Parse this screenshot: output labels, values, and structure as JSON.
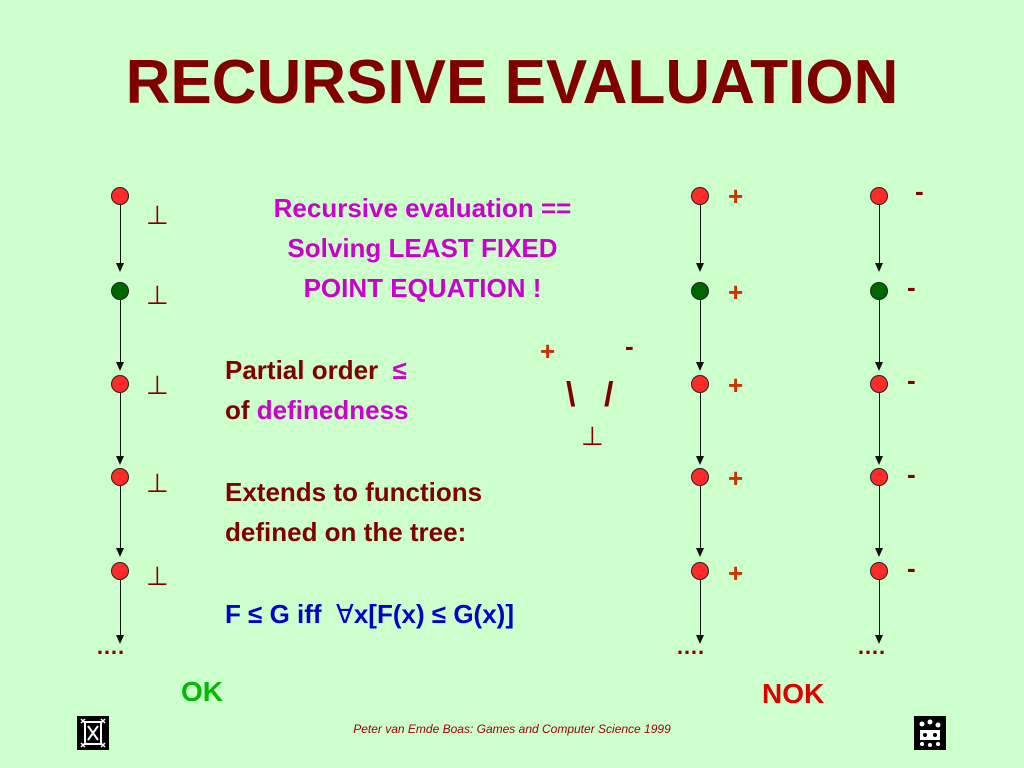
{
  "title": "RECURSIVE EVALUATION",
  "text": {
    "line1": "Recursive evaluation ==",
    "line2": "Solving LEAST FIXED",
    "line3": "POINT EQUATION !",
    "partial_order": "Partial order",
    "leq_symbol": "≤",
    "of": "of",
    "definedness": "definedness",
    "extends1": "Extends to functions",
    "extends2": "defined on the tree:",
    "formula_left": "F ≤ G iff",
    "forall": "∀",
    "formula_right": "x[F(x) ≤ G(x)]"
  },
  "lattice": {
    "top_left": "+",
    "top_right": "-",
    "bottom": "⊥",
    "left_edge": "\\",
    "right_edge": "/"
  },
  "chains": {
    "ok": {
      "labels": [
        "⊥",
        "⊥",
        "⊥",
        "⊥",
        "⊥"
      ],
      "ellipsis": "….",
      "caption": "OK"
    },
    "plus": {
      "labels": [
        "+",
        "+",
        "+",
        "+",
        "+"
      ],
      "ellipsis": "…."
    },
    "minus": {
      "labels": [
        "-",
        "-",
        "-",
        "-",
        "-"
      ],
      "ellipsis": "….",
      "caption": "NOK"
    }
  },
  "footer": "Peter van Emde Boas: Games and Computer Science 1999",
  "colors": {
    "background": "#ccffcc",
    "title": "#800000",
    "node_red": "#ff2a2a",
    "node_green": "#006600"
  }
}
